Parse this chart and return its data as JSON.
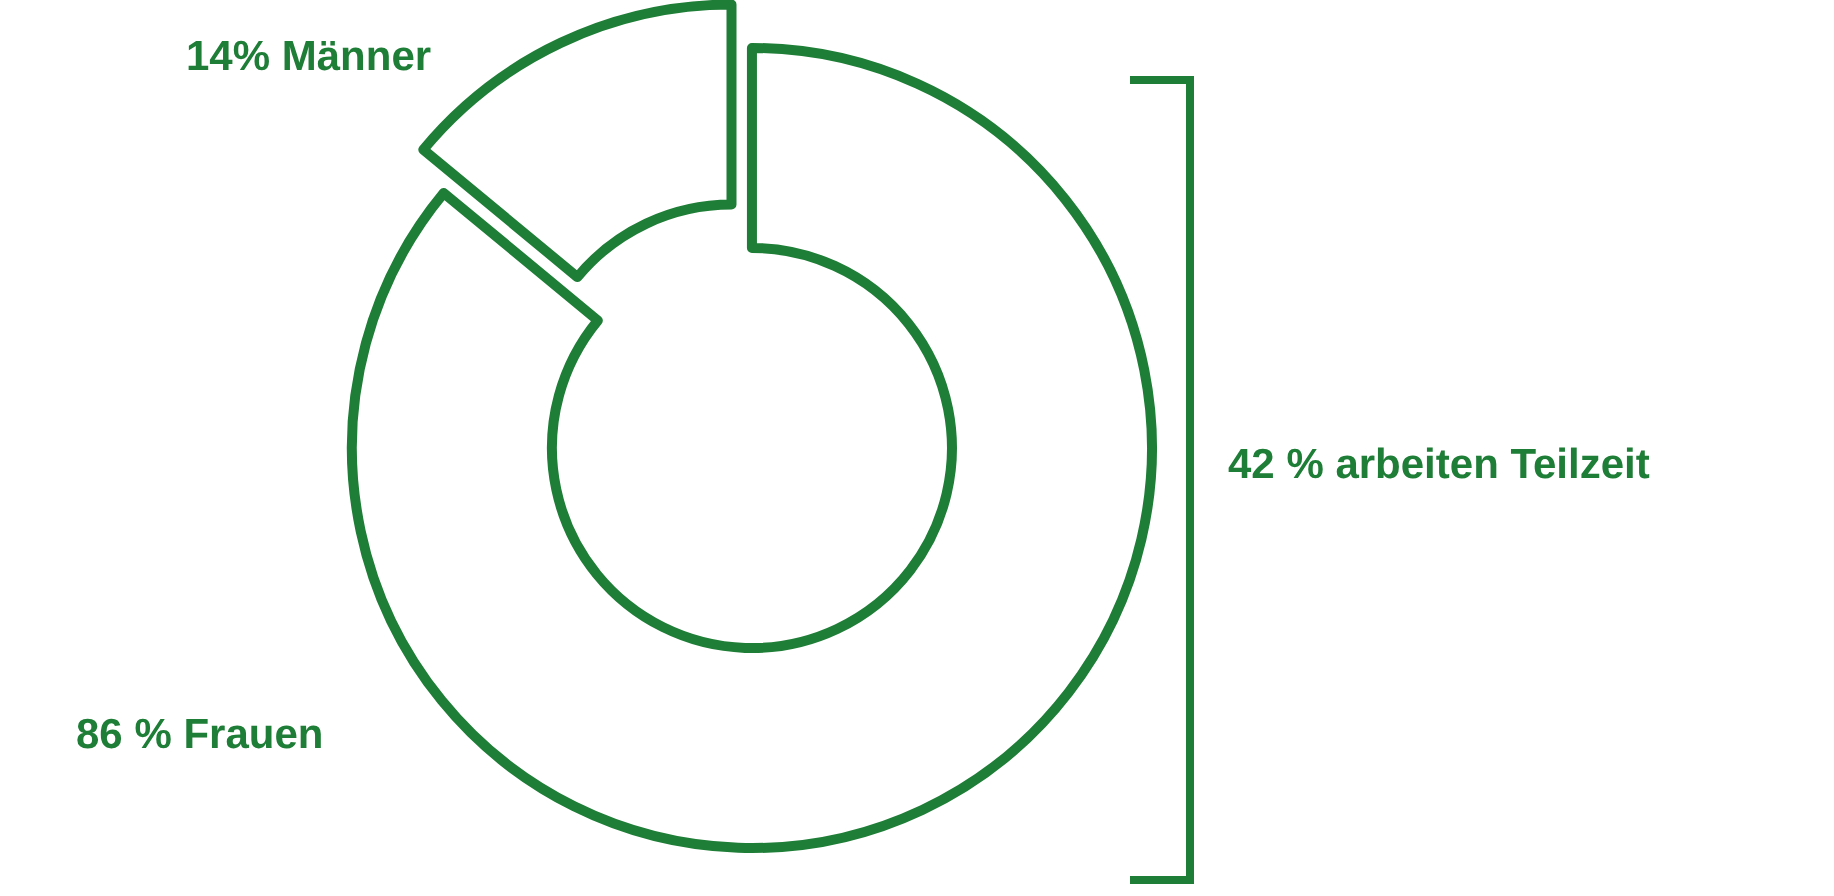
{
  "chart_data": {
    "type": "donut",
    "categories": [
      "86 % Frauen",
      "14% Männer"
    ],
    "values": [
      86,
      14
    ],
    "colors": [
      "#1e7d36",
      "#1e7d36"
    ],
    "annotations": [
      "42 % arbeiten Teilzeit"
    ],
    "legend": false
  }
}
